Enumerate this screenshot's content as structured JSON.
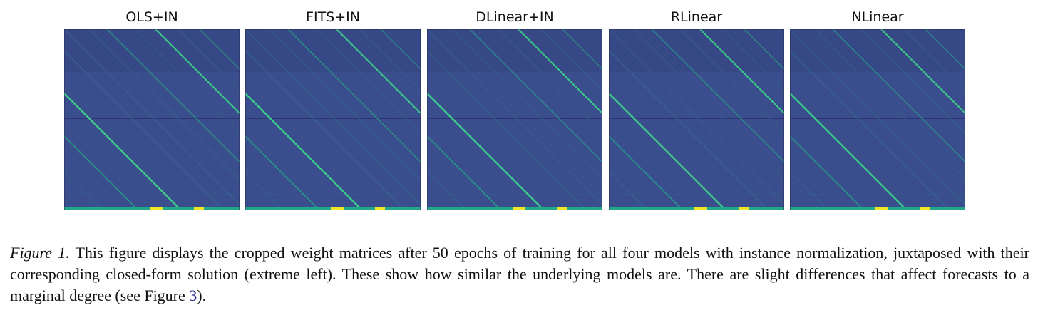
{
  "figure": {
    "panels": [
      {
        "title": "OLS+IN"
      },
      {
        "title": "FITS+IN"
      },
      {
        "title": "DLinear+IN"
      },
      {
        "title": "RLinear"
      },
      {
        "title": "NLinear"
      }
    ],
    "colormap": {
      "background": "#3a4d8c",
      "background_dark": "#33407e",
      "stripe_dim": "#2f6f8e",
      "stripe_mid": "#25a08a",
      "stripe_bright": "#3dd08a",
      "bottom_row": "#21a88a",
      "bottom_bright": "#f2e626"
    }
  },
  "caption": {
    "label": "Figure 1.",
    "text_before_ref": " This figure displays the cropped weight matrices after 50 epochs of training for all four models with instance normalization, juxtaposed with their corresponding closed-form solution (extreme left). These show how similar the underlying models are. There are slight differences that affect forecasts to a marginal degree (see Figure ",
    "ref": "3",
    "text_after_ref": ")."
  }
}
